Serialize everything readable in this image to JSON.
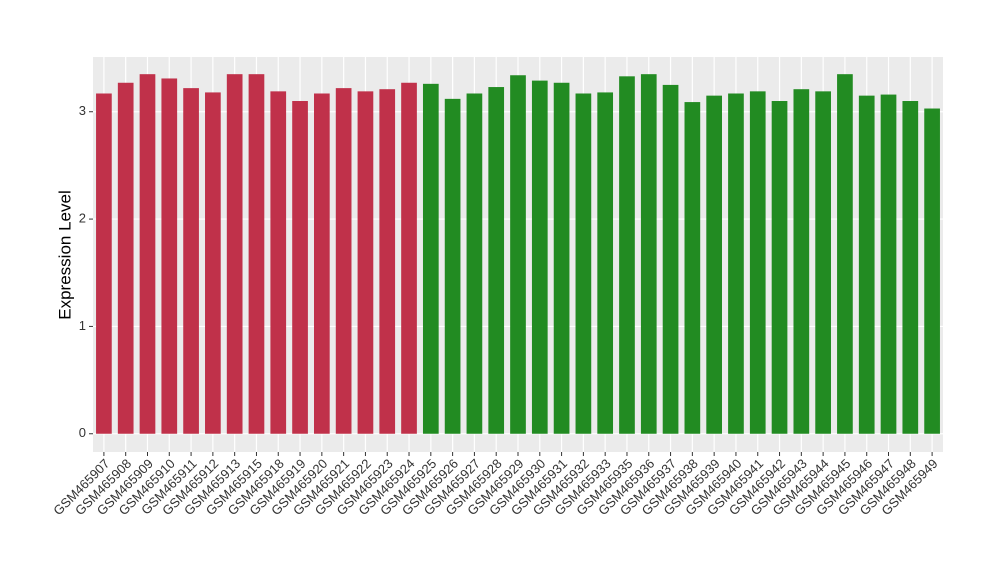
{
  "chart_data": {
    "type": "bar",
    "y_label": "Expression Level",
    "categories": [
      "GSM465907",
      "GSM465908",
      "GSM465909",
      "GSM465910",
      "GSM465911",
      "GSM465912",
      "GSM465913",
      "GSM465915",
      "GSM465918",
      "GSM465919",
      "GSM465920",
      "GSM465921",
      "GSM465922",
      "GSM465923",
      "GSM465924",
      "GSM465925",
      "GSM465926",
      "GSM465927",
      "GSM465928",
      "GSM465929",
      "GSM465930",
      "GSM465931",
      "GSM465932",
      "GSM465933",
      "GSM465935",
      "GSM465936",
      "GSM465937",
      "GSM465938",
      "GSM465939",
      "GSM465940",
      "GSM465941",
      "GSM465942",
      "GSM465943",
      "GSM465944",
      "GSM465945",
      "GSM465946",
      "GSM465947",
      "GSM465948",
      "GSM465949"
    ],
    "values": [
      3.17,
      3.27,
      3.35,
      3.31,
      3.22,
      3.18,
      3.35,
      3.35,
      3.19,
      3.1,
      3.17,
      3.22,
      3.19,
      3.21,
      3.27,
      3.26,
      3.12,
      3.17,
      3.23,
      3.34,
      3.29,
      3.27,
      3.17,
      3.18,
      3.33,
      3.35,
      3.25,
      3.09,
      3.15,
      3.17,
      3.19,
      3.1,
      3.21,
      3.19,
      3.35,
      3.15,
      3.16,
      3.1,
      3.03
    ],
    "colors": [
      "#c0314a",
      "#c0314a",
      "#c0314a",
      "#c0314a",
      "#c0314a",
      "#c0314a",
      "#c0314a",
      "#c0314a",
      "#c0314a",
      "#c0314a",
      "#c0314a",
      "#c0314a",
      "#c0314a",
      "#c0314a",
      "#c0314a",
      "#228b22",
      "#228b22",
      "#228b22",
      "#228b22",
      "#228b22",
      "#228b22",
      "#228b22",
      "#228b22",
      "#228b22",
      "#228b22",
      "#228b22",
      "#228b22",
      "#228b22",
      "#228b22",
      "#228b22",
      "#228b22",
      "#228b22",
      "#228b22",
      "#228b22",
      "#228b22",
      "#228b22",
      "#228b22",
      "#228b22",
      "#228b22"
    ],
    "ylim": [
      -0.17,
      3.51
    ],
    "yticks": [
      0,
      1,
      2,
      3
    ],
    "grid": true
  }
}
